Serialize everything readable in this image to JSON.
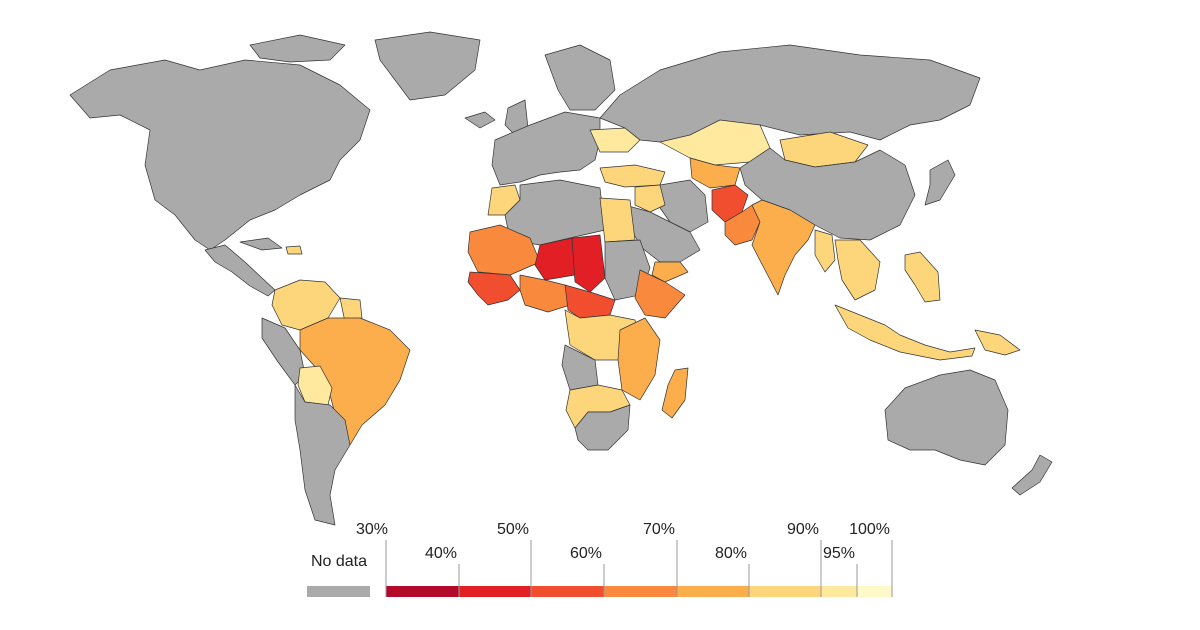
{
  "colors": {
    "no_data": "#aaaaaa",
    "bins": [
      "#b30a2a",
      "#e31f26",
      "#f04e2f",
      "#f9893c",
      "#fcae4d",
      "#fdd67c",
      "#fee99f",
      "#fff8c8"
    ]
  },
  "legend": {
    "no_data_label": "No data",
    "ticks": [
      "30%",
      "40%",
      "50%",
      "60%",
      "70%",
      "80%",
      "90%",
      "95%",
      "100%"
    ]
  },
  "regions": [
    {
      "id": "north-america",
      "category": "no_data"
    },
    {
      "id": "greenland",
      "category": "no_data"
    },
    {
      "id": "canada-arctic",
      "category": "no_data"
    },
    {
      "id": "central-america",
      "category": "no_data"
    },
    {
      "id": "cuba",
      "category": "no_data"
    },
    {
      "id": "haiti",
      "category": "80-90"
    },
    {
      "id": "colombia-venezuela",
      "category": "80-90"
    },
    {
      "id": "guyana",
      "category": "80-90"
    },
    {
      "id": "peru-ecuador",
      "category": "no_data"
    },
    {
      "id": "brazil",
      "category": "70-80"
    },
    {
      "id": "bolivia",
      "category": "90-95"
    },
    {
      "id": "southern-cone",
      "category": "no_data"
    },
    {
      "id": "europe",
      "category": "no_data"
    },
    {
      "id": "scandinavia",
      "category": "no_data"
    },
    {
      "id": "uk-ireland",
      "category": "no_data"
    },
    {
      "id": "iceland",
      "category": "no_data"
    },
    {
      "id": "ukraine",
      "category": "90-95"
    },
    {
      "id": "turkey",
      "category": "80-90"
    },
    {
      "id": "russia",
      "category": "no_data"
    },
    {
      "id": "kazakhstan",
      "category": "90-95"
    },
    {
      "id": "central-asia",
      "category": "70-80"
    },
    {
      "id": "mongolia",
      "category": "80-90"
    },
    {
      "id": "china",
      "category": "no_data"
    },
    {
      "id": "iran",
      "category": "no_data"
    },
    {
      "id": "iraq",
      "category": "80-90"
    },
    {
      "id": "afghanistan",
      "category": "50-60"
    },
    {
      "id": "pakistan",
      "category": "60-70"
    },
    {
      "id": "india",
      "category": "70-80"
    },
    {
      "id": "arabia",
      "category": "no_data"
    },
    {
      "id": "yemen",
      "category": "70-80"
    },
    {
      "id": "southeast-asia",
      "category": "80-90"
    },
    {
      "id": "myanmar",
      "category": "80-90"
    },
    {
      "id": "philippines",
      "category": "80-90"
    },
    {
      "id": "indonesia",
      "category": "80-90"
    },
    {
      "id": "png",
      "category": "80-90"
    },
    {
      "id": "japan",
      "category": "no_data"
    },
    {
      "id": "australia",
      "category": "no_data"
    },
    {
      "id": "new-zealand",
      "category": "no_data"
    },
    {
      "id": "north-africa",
      "category": "no_data"
    },
    {
      "id": "morocco",
      "category": "80-90"
    },
    {
      "id": "egypt",
      "category": "80-90"
    },
    {
      "id": "mauritania-mali",
      "category": "60-70"
    },
    {
      "id": "niger",
      "category": "40-50"
    },
    {
      "id": "chad",
      "category": "40-50"
    },
    {
      "id": "west-africa-coast",
      "category": "50-60"
    },
    {
      "id": "nigeria",
      "category": "60-70"
    },
    {
      "id": "cameroon-car",
      "category": "50-60"
    },
    {
      "id": "sudan",
      "category": "no_data"
    },
    {
      "id": "ethiopia",
      "category": "60-70"
    },
    {
      "id": "central-africa",
      "category": "80-90"
    },
    {
      "id": "angola",
      "category": "no_data"
    },
    {
      "id": "east-africa",
      "category": "70-80"
    },
    {
      "id": "southern-africa",
      "category": "80-90"
    },
    {
      "id": "south-africa",
      "category": "no_data"
    },
    {
      "id": "madagascar",
      "category": "70-80"
    }
  ]
}
